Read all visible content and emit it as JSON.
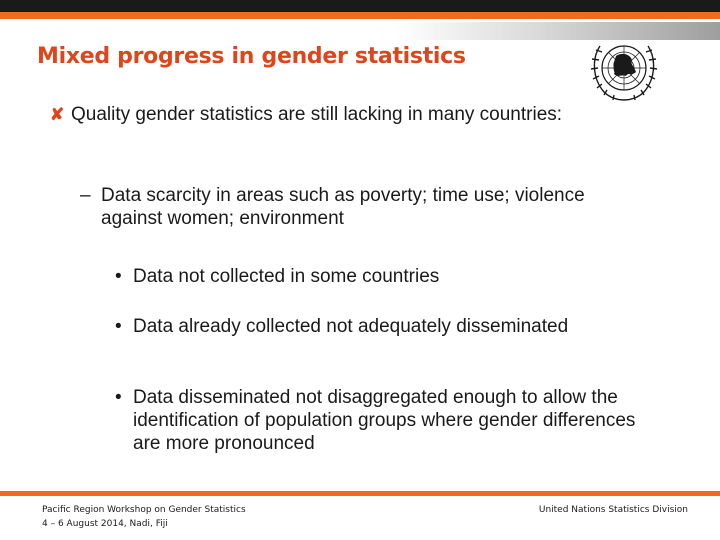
{
  "slide": {
    "title": "Mixed progress in gender statistics",
    "level1": {
      "marker": "✘",
      "text": "Quality gender statistics are still lacking in many countries:"
    },
    "level2": {
      "marker": "–",
      "text": "Data scarcity in areas such as poverty; time use; violence against women; environment"
    },
    "level3": [
      {
        "marker": "•",
        "text": "Data not collected in some countries"
      },
      {
        "marker": "•",
        "text": "Data already collected not adequately disseminated"
      },
      {
        "marker": "•",
        "text": "Data disseminated not disaggregated enough to allow the identification of population groups where gender differences are more pronounced"
      }
    ]
  },
  "footer": {
    "left_line1": "Pacific Region Workshop on Gender Statistics",
    "left_line2": "4 – 6 August 2014, Nadi, Fiji",
    "right": "United Nations Statistics Division"
  },
  "logo": {
    "icon": "un-emblem-icon"
  },
  "colors": {
    "accent": "#f26a21",
    "title": "#e0441b",
    "text": "#1a1a1a",
    "top_bar": "#1a1a1a"
  }
}
